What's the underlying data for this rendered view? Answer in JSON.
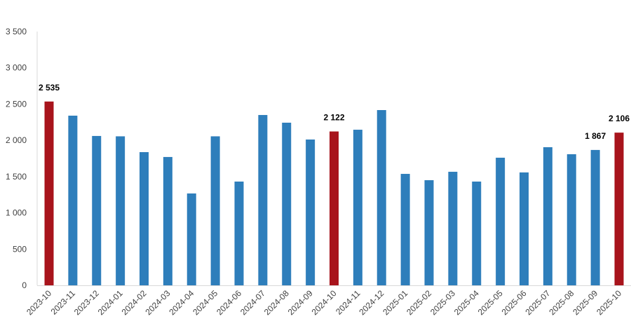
{
  "chart_data": {
    "type": "bar",
    "title": "",
    "xlabel": "",
    "ylabel": "",
    "ylim": [
      0,
      3500
    ],
    "yticks": [
      0,
      500,
      1000,
      1500,
      2000,
      2500,
      3000,
      3500
    ],
    "ytick_labels": [
      "0",
      "500",
      "1 000",
      "1 500",
      "2 000",
      "2 500",
      "3 000",
      "3 500"
    ],
    "grid": false,
    "legend": "none",
    "colors": {
      "default": "#2e7ebb",
      "highlight": "#a8141c"
    },
    "categories": [
      "2023-10",
      "2023-11",
      "2023-12",
      "2024-01",
      "2024-02",
      "2024-03",
      "2024-04",
      "2024-05",
      "2024-06",
      "2024-07",
      "2024-08",
      "2024-09",
      "2024-10",
      "2024-11",
      "2024-12",
      "2025-01",
      "2025-02",
      "2025-03",
      "2025-04",
      "2025-05",
      "2025-06",
      "2025-07",
      "2025-08",
      "2025-09",
      "2025-10"
    ],
    "values": [
      2535,
      2340,
      2060,
      2055,
      1837,
      1770,
      1267,
      2055,
      1431,
      2349,
      2243,
      2011,
      2122,
      2146,
      2417,
      1537,
      1450,
      1566,
      1431,
      1760,
      1557,
      1905,
      1808,
      1867,
      2106
    ],
    "highlighted": [
      "2023-10",
      "2024-10",
      "2025-10"
    ],
    "data_labels": {
      "2023-10": "2 535",
      "2024-10": "2 122",
      "2025-09": "1 867",
      "2025-10": "2 106"
    }
  }
}
